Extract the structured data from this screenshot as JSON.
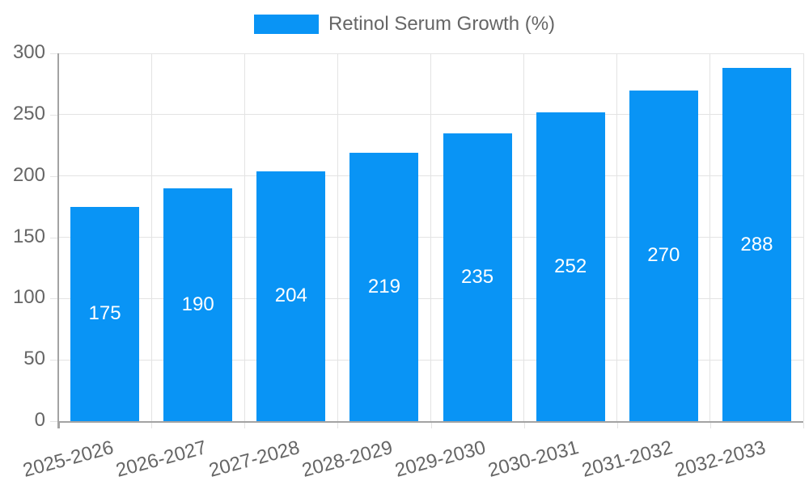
{
  "chart_data": {
    "type": "bar",
    "title": "",
    "legend": {
      "label": "Retinol Serum Growth (%)",
      "position": "top"
    },
    "categories": [
      "2025-2026",
      "2026-2027",
      "2027-2028",
      "2028-2029",
      "2029-2030",
      "2030-2031",
      "2031-2032",
      "2032-2033"
    ],
    "series": [
      {
        "name": "Retinol Serum Growth (%)",
        "values": [
          175,
          190,
          204,
          219,
          235,
          252,
          270,
          288
        ]
      }
    ],
    "bar_value_labels": [
      "175",
      "190",
      "204",
      "219",
      "235",
      "252",
      "270",
      "288"
    ],
    "xlabel": "",
    "ylabel": "",
    "ylim": [
      0,
      300
    ],
    "yticks": [
      0,
      50,
      100,
      150,
      200,
      250,
      300
    ],
    "grid": true,
    "x_label_rotation_deg": -15,
    "colors": {
      "bar": "#0994f5",
      "bar_label": "#ffffff",
      "axis_text": "#666666",
      "grid": "#e3e3e3",
      "axis_line": "#a3a3a3"
    }
  }
}
